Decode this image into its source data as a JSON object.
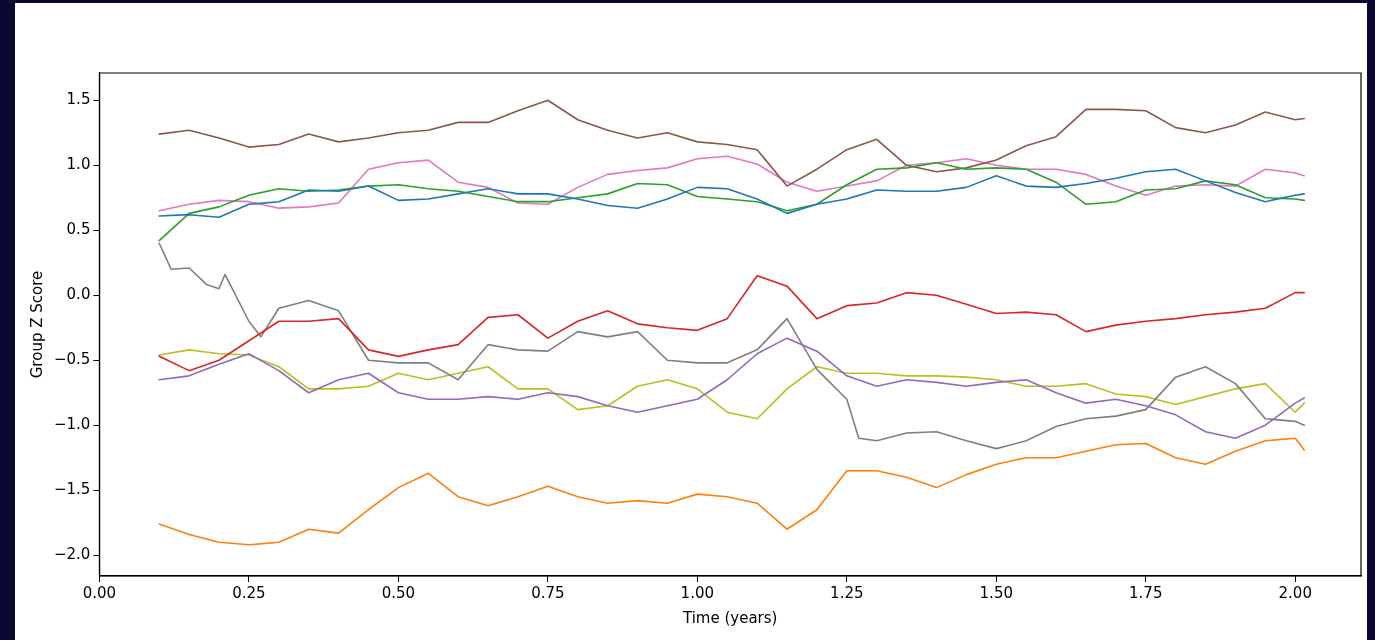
{
  "chart_data": {
    "type": "line",
    "xlabel": "Time (years)",
    "ylabel": "Group Z Score",
    "x": [
      0.1,
      0.15,
      0.2,
      0.25,
      0.3,
      0.35,
      0.4,
      0.45,
      0.5,
      0.55,
      0.6,
      0.65,
      0.7,
      0.75,
      0.8,
      0.85,
      0.9,
      0.95,
      1.0,
      1.05,
      1.1,
      1.15,
      1.2,
      1.25,
      1.3,
      1.35,
      1.4,
      1.45,
      1.5,
      1.55,
      1.6,
      1.65,
      1.7,
      1.75,
      1.8,
      1.85,
      1.9,
      1.95,
      2.0,
      2.015
    ],
    "xlim": [
      0,
      2.11
    ],
    "ylim": [
      -2.16,
      1.71
    ],
    "xticks": [
      {
        "value": 0,
        "label": "0.00"
      },
      {
        "value": 0.25,
        "label": "0.25"
      },
      {
        "value": 0.5,
        "label": "0.50"
      },
      {
        "value": 0.75,
        "label": "0.75"
      },
      {
        "value": 1,
        "label": "1.00"
      },
      {
        "value": 1.25,
        "label": "1.25"
      },
      {
        "value": 1.5,
        "label": "1.50"
      },
      {
        "value": 1.75,
        "label": "1.75"
      },
      {
        "value": 2,
        "label": "2.00"
      }
    ],
    "yticks": [
      {
        "value": -2,
        "label": "−2.0"
      },
      {
        "value": -1.5,
        "label": "−1.5"
      },
      {
        "value": -1,
        "label": "−1.0"
      },
      {
        "value": -0.5,
        "label": "−0.5"
      },
      {
        "value": 0,
        "label": "0.0"
      },
      {
        "value": 0.5,
        "label": "0.5"
      },
      {
        "value": 1,
        "label": "1.0"
      },
      {
        "value": 1.5,
        "label": "1.5"
      }
    ],
    "grid": false,
    "legend": false,
    "marker": "none",
    "line_style": "solid",
    "series": [
      {
        "color": "#1f77b4",
        "values": [
          0.61,
          0.62,
          0.6,
          0.7,
          0.72,
          0.81,
          0.8,
          0.84,
          0.73,
          0.74,
          0.78,
          0.82,
          0.78,
          0.78,
          0.74,
          0.69,
          0.67,
          0.74,
          0.83,
          0.82,
          0.74,
          0.63,
          0.7,
          0.74,
          0.81,
          0.8,
          0.8,
          0.83,
          0.92,
          0.84,
          0.83,
          0.86,
          0.9,
          0.95,
          0.97,
          0.88,
          0.79,
          0.72,
          0.77,
          0.78
        ]
      },
      {
        "color": "#ff7f0e",
        "values": [
          -1.76,
          -1.84,
          -1.9,
          -1.92,
          -1.9,
          -1.8,
          -1.83,
          -1.65,
          -1.48,
          -1.37,
          -1.55,
          -1.62,
          -1.55,
          -1.47,
          -1.55,
          -1.6,
          -1.58,
          -1.6,
          -1.53,
          -1.55,
          -1.6,
          -1.8,
          -1.65,
          -1.35,
          -1.35,
          -1.4,
          -1.48,
          -1.38,
          -1.3,
          -1.25,
          -1.25,
          -1.2,
          -1.15,
          -1.14,
          -1.25,
          -1.3,
          -1.2,
          -1.12,
          -1.1,
          -1.19
        ]
      },
      {
        "color": "#2ca02c",
        "values": [
          0.42,
          0.63,
          0.68,
          0.77,
          0.82,
          0.8,
          0.81,
          0.84,
          0.85,
          0.82,
          0.8,
          0.76,
          0.72,
          0.72,
          0.75,
          0.78,
          0.86,
          0.85,
          0.76,
          0.74,
          0.72,
          0.65,
          0.7,
          0.85,
          0.97,
          0.98,
          1.02,
          0.97,
          0.98,
          0.97,
          0.87,
          0.7,
          0.72,
          0.81,
          0.82,
          0.88,
          0.85,
          0.75,
          0.74,
          0.73
        ]
      },
      {
        "color": "#d62728",
        "values": [
          -0.47,
          -0.58,
          -0.5,
          -0.35,
          -0.2,
          -0.2,
          -0.18,
          -0.42,
          -0.47,
          -0.42,
          -0.38,
          -0.17,
          -0.15,
          -0.33,
          -0.2,
          -0.12,
          -0.22,
          -0.25,
          -0.27,
          -0.18,
          0.15,
          0.07,
          -0.18,
          -0.08,
          -0.06,
          0.02,
          0,
          -0.07,
          -0.14,
          -0.13,
          -0.15,
          -0.28,
          -0.23,
          -0.2,
          -0.18,
          -0.15,
          -0.13,
          -0.1,
          0.02,
          0.02
        ]
      },
      {
        "color": "#9467bd",
        "values": [
          -0.65,
          -0.62,
          -0.53,
          -0.45,
          -0.58,
          -0.75,
          -0.65,
          -0.6,
          -0.75,
          -0.8,
          -0.8,
          -0.78,
          -0.8,
          -0.75,
          -0.78,
          -0.85,
          -0.9,
          -0.85,
          -0.8,
          -0.65,
          -0.45,
          -0.33,
          -0.43,
          -0.62,
          -0.7,
          -0.65,
          -0.67,
          -0.7,
          -0.67,
          -0.65,
          -0.75,
          -0.83,
          -0.8,
          -0.85,
          -0.92,
          -1.05,
          -1.1,
          -1.0,
          -0.83,
          -0.79
        ]
      },
      {
        "color": "#8c564b",
        "values": [
          1.24,
          1.27,
          1.21,
          1.14,
          1.16,
          1.24,
          1.18,
          1.21,
          1.25,
          1.27,
          1.33,
          1.33,
          1.42,
          1.5,
          1.35,
          1.27,
          1.21,
          1.25,
          1.18,
          1.16,
          1.12,
          0.84,
          0.97,
          1.12,
          1.2,
          1.0,
          0.95,
          0.98,
          1.04,
          1.15,
          1.22,
          1.43,
          1.43,
          1.42,
          1.29,
          1.25,
          1.31,
          1.41,
          1.35,
          1.36
        ]
      },
      {
        "color": "#e377c2",
        "values": [
          0.65,
          0.7,
          0.73,
          0.72,
          0.67,
          0.68,
          0.71,
          0.97,
          1.02,
          1.04,
          0.87,
          0.83,
          0.71,
          0.7,
          0.83,
          0.93,
          0.96,
          0.98,
          1.05,
          1.07,
          1.01,
          0.87,
          0.8,
          0.84,
          0.88,
          1.0,
          1.02,
          1.05,
          1.0,
          0.97,
          0.97,
          0.93,
          0.84,
          0.77,
          0.84,
          0.85,
          0.84,
          0.97,
          0.94,
          0.92
        ]
      },
      {
        "color": "#7f7f7f",
        "x": [
          0.1,
          0.12,
          0.15,
          0.18,
          0.2,
          0.21,
          0.25,
          0.27,
          0.3,
          0.35,
          0.4,
          0.45,
          0.5,
          0.55,
          0.6,
          0.65,
          0.7,
          0.75,
          0.8,
          0.85,
          0.9,
          0.95,
          1.0,
          1.05,
          1.1,
          1.15,
          1.2,
          1.25,
          1.27,
          1.3,
          1.35,
          1.4,
          1.45,
          1.5,
          1.55,
          1.6,
          1.65,
          1.7,
          1.75,
          1.8,
          1.85,
          1.9,
          1.95,
          2.0,
          2.015
        ],
        "values": [
          0.4,
          0.2,
          0.21,
          0.08,
          0.05,
          0.16,
          -0.2,
          -0.32,
          -0.1,
          -0.04,
          -0.12,
          -0.5,
          -0.52,
          -0.52,
          -0.65,
          -0.38,
          -0.42,
          -0.43,
          -0.28,
          -0.32,
          -0.28,
          -0.5,
          -0.52,
          -0.52,
          -0.42,
          -0.18,
          -0.57,
          -0.8,
          -1.1,
          -1.12,
          -1.06,
          -1.05,
          -1.12,
          -1.18,
          -1.12,
          -1.01,
          -0.95,
          -0.93,
          -0.88,
          -0.63,
          -0.55,
          -0.68,
          -0.95,
          -0.97,
          -1.0
        ]
      },
      {
        "color": "#bcbd22",
        "values": [
          -0.46,
          -0.42,
          -0.45,
          -0.46,
          -0.55,
          -0.72,
          -0.72,
          -0.7,
          -0.6,
          -0.65,
          -0.6,
          -0.55,
          -0.72,
          -0.72,
          -0.88,
          -0.85,
          -0.7,
          -0.65,
          -0.72,
          -0.9,
          -0.95,
          -0.72,
          -0.55,
          -0.6,
          -0.6,
          -0.62,
          -0.62,
          -0.63,
          -0.65,
          -0.7,
          -0.7,
          -0.68,
          -0.76,
          -0.78,
          -0.84,
          -0.78,
          -0.72,
          -0.68,
          -0.9,
          -0.83
        ]
      }
    ]
  }
}
